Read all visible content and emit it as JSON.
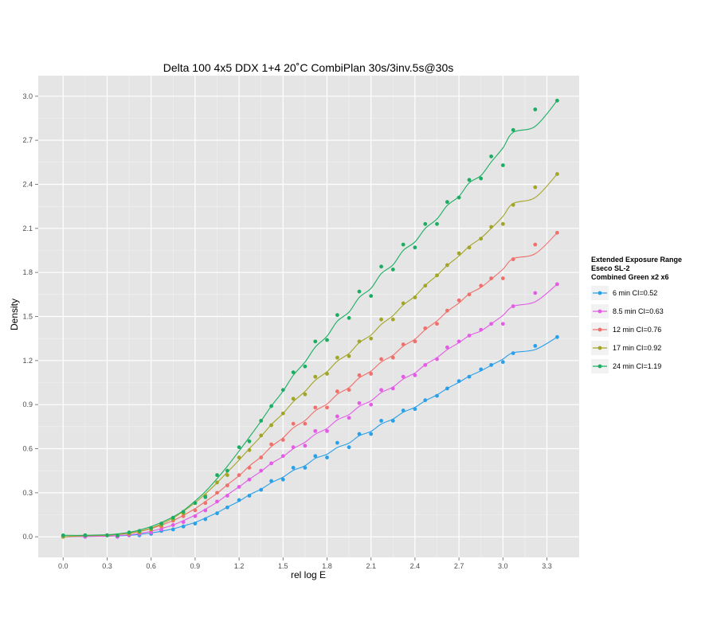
{
  "chart_data": {
    "type": "scatter",
    "title": "Delta 100 4x5 DDX 1+4 20˚C CombiPlan 30s/3inv.5s@30s",
    "xlabel": "rel log E",
    "ylabel": "Density",
    "xlim": [
      -0.17,
      3.52
    ],
    "ylim": [
      -0.14,
      3.14
    ],
    "x_ticks": [
      "0.0",
      "0.3",
      "0.6",
      "0.9",
      "1.2",
      "1.5",
      "1.8",
      "2.1",
      "2.4",
      "2.7",
      "3.0",
      "3.3"
    ],
    "y_ticks": [
      "0.0",
      "0.3",
      "0.6",
      "0.9",
      "1.2",
      "1.5",
      "1.8",
      "2.1",
      "2.4",
      "2.7",
      "3.0"
    ],
    "grid": true,
    "legend": {
      "position": "right",
      "title_lines": [
        "Extended Exposure Range",
        "Eseco SL-2",
        "Combined Green x2 x6"
      ]
    },
    "series": [
      {
        "name": "6 min CI=0.52",
        "color": "#2aa0e8",
        "x": [
          0.0,
          0.15,
          0.3,
          0.37,
          0.45,
          0.52,
          0.6,
          0.67,
          0.75,
          0.82,
          0.9,
          0.97,
          1.05,
          1.12,
          1.2,
          1.27,
          1.35,
          1.42,
          1.5,
          1.57,
          1.65,
          1.72,
          1.8,
          1.87,
          1.95,
          2.02,
          2.1,
          2.17,
          2.25,
          2.32,
          2.4,
          2.47,
          2.55,
          2.62,
          2.7,
          2.77,
          2.85,
          2.92,
          3.0,
          3.07,
          3.22,
          3.37
        ],
        "values": [
          0.0,
          0.0,
          0.01,
          0.0,
          0.01,
          0.01,
          0.02,
          0.04,
          0.05,
          0.07,
          0.09,
          0.12,
          0.16,
          0.2,
          0.25,
          0.28,
          0.32,
          0.38,
          0.39,
          0.47,
          0.47,
          0.55,
          0.54,
          0.64,
          0.61,
          0.7,
          0.7,
          0.79,
          0.79,
          0.86,
          0.87,
          0.93,
          0.96,
          1.01,
          1.06,
          1.09,
          1.14,
          1.17,
          1.19,
          1.25,
          1.3,
          1.36
        ]
      },
      {
        "name": "8.5 min CI=0.63",
        "color": "#e45ce6",
        "x": [
          0.0,
          0.15,
          0.3,
          0.37,
          0.45,
          0.52,
          0.6,
          0.67,
          0.75,
          0.82,
          0.9,
          0.97,
          1.05,
          1.12,
          1.2,
          1.27,
          1.35,
          1.42,
          1.5,
          1.57,
          1.65,
          1.72,
          1.8,
          1.87,
          1.95,
          2.02,
          2.1,
          2.17,
          2.25,
          2.32,
          2.4,
          2.47,
          2.55,
          2.62,
          2.7,
          2.77,
          2.85,
          2.92,
          3.0,
          3.07,
          3.22,
          3.37
        ],
        "values": [
          0.0,
          0.0,
          0.01,
          0.0,
          0.01,
          0.02,
          0.03,
          0.05,
          0.08,
          0.1,
          0.14,
          0.18,
          0.24,
          0.28,
          0.34,
          0.39,
          0.45,
          0.5,
          0.55,
          0.61,
          0.62,
          0.72,
          0.72,
          0.82,
          0.81,
          0.91,
          0.9,
          1.0,
          1.01,
          1.09,
          1.1,
          1.17,
          1.21,
          1.29,
          1.33,
          1.37,
          1.41,
          1.45,
          1.45,
          1.57,
          1.66,
          1.72
        ]
      },
      {
        "name": "12 min CI=0.76",
        "color": "#f0706c",
        "x": [
          0.0,
          0.15,
          0.3,
          0.37,
          0.45,
          0.52,
          0.6,
          0.67,
          0.75,
          0.82,
          0.9,
          0.97,
          1.05,
          1.12,
          1.2,
          1.27,
          1.35,
          1.42,
          1.5,
          1.57,
          1.65,
          1.72,
          1.8,
          1.87,
          1.95,
          2.02,
          2.1,
          2.17,
          2.25,
          2.32,
          2.4,
          2.47,
          2.55,
          2.62,
          2.7,
          2.77,
          2.85,
          2.92,
          3.0,
          3.07,
          3.22,
          3.37
        ],
        "values": [
          0.0,
          0.01,
          0.01,
          0.01,
          0.02,
          0.03,
          0.05,
          0.07,
          0.11,
          0.14,
          0.18,
          0.23,
          0.3,
          0.35,
          0.42,
          0.47,
          0.54,
          0.63,
          0.66,
          0.77,
          0.77,
          0.88,
          0.88,
          0.99,
          1.0,
          1.1,
          1.11,
          1.21,
          1.22,
          1.31,
          1.33,
          1.42,
          1.45,
          1.54,
          1.61,
          1.65,
          1.71,
          1.76,
          1.76,
          1.89,
          1.99,
          2.07
        ]
      },
      {
        "name": "17 min CI=0.92",
        "color": "#a3a526",
        "x": [
          0.0,
          0.15,
          0.3,
          0.37,
          0.45,
          0.52,
          0.6,
          0.67,
          0.75,
          0.82,
          0.9,
          0.97,
          1.05,
          1.12,
          1.2,
          1.27,
          1.35,
          1.42,
          1.5,
          1.57,
          1.65,
          1.72,
          1.8,
          1.87,
          1.95,
          2.02,
          2.1,
          2.17,
          2.25,
          2.32,
          2.4,
          2.47,
          2.55,
          2.62,
          2.7,
          2.77,
          2.85,
          2.92,
          3.0,
          3.07,
          3.22,
          3.37
        ],
        "values": [
          0.0,
          0.01,
          0.01,
          0.01,
          0.02,
          0.03,
          0.05,
          0.08,
          0.12,
          0.16,
          0.23,
          0.28,
          0.37,
          0.42,
          0.54,
          0.59,
          0.69,
          0.76,
          0.84,
          0.94,
          0.97,
          1.09,
          1.11,
          1.22,
          1.23,
          1.33,
          1.35,
          1.48,
          1.48,
          1.59,
          1.63,
          1.71,
          1.78,
          1.85,
          1.93,
          1.97,
          2.03,
          2.11,
          2.13,
          2.26,
          2.38,
          2.47
        ]
      },
      {
        "name": "24 min CI=1.19",
        "color": "#1bae62",
        "x": [
          0.0,
          0.15,
          0.3,
          0.37,
          0.45,
          0.52,
          0.6,
          0.67,
          0.75,
          0.82,
          0.9,
          0.97,
          1.05,
          1.12,
          1.2,
          1.27,
          1.35,
          1.42,
          1.5,
          1.57,
          1.65,
          1.72,
          1.8,
          1.87,
          1.95,
          2.02,
          2.1,
          2.17,
          2.25,
          2.32,
          2.4,
          2.47,
          2.55,
          2.62,
          2.7,
          2.77,
          2.85,
          2.92,
          3.0,
          3.07,
          3.22,
          3.37
        ],
        "values": [
          0.01,
          0.01,
          0.01,
          0.01,
          0.03,
          0.04,
          0.06,
          0.09,
          0.13,
          0.17,
          0.23,
          0.27,
          0.42,
          0.45,
          0.61,
          0.65,
          0.79,
          0.89,
          1.0,
          1.12,
          1.16,
          1.33,
          1.34,
          1.51,
          1.49,
          1.67,
          1.64,
          1.84,
          1.82,
          1.99,
          1.97,
          2.13,
          2.13,
          2.28,
          2.31,
          2.43,
          2.44,
          2.59,
          2.53,
          2.77,
          2.91,
          2.97
        ]
      }
    ]
  }
}
